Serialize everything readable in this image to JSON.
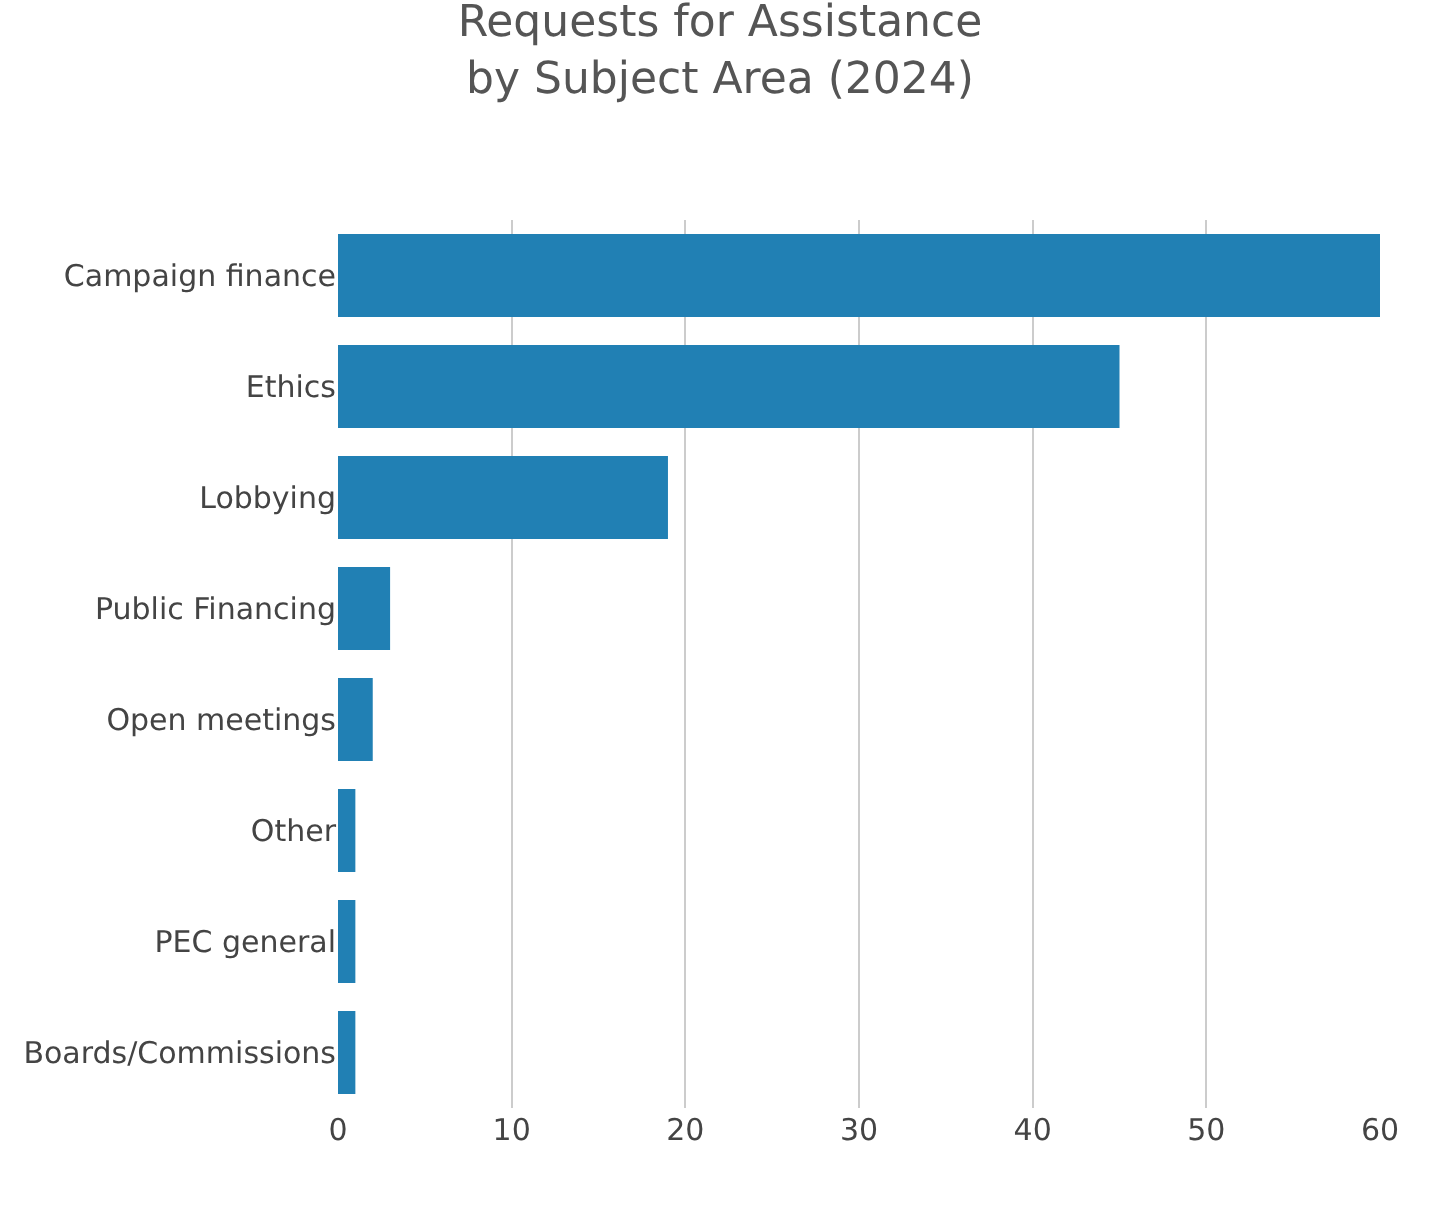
{
  "chart_data": {
    "type": "bar",
    "orientation": "horizontal",
    "title": "Requests for Assistance\nby Subject Area (2024)",
    "categories": [
      "Campaign finance",
      "Ethics",
      "Lobbying",
      "Public Financing",
      "Open meetings",
      "Other",
      "PEC general",
      "Boards/Commissions"
    ],
    "values": [
      60,
      45,
      19,
      3,
      2,
      1,
      1,
      1
    ],
    "color": "#2180b4",
    "xlim": [
      0,
      60
    ],
    "xticks": [
      0,
      10,
      20,
      30,
      40,
      50,
      60
    ],
    "grid": "x",
    "legend": false
  }
}
